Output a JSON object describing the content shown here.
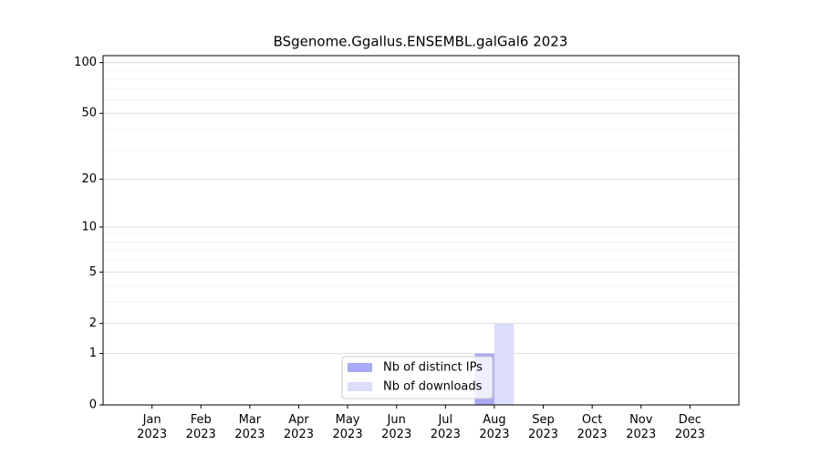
{
  "chart_data": {
    "type": "bar",
    "title": "BSgenome.Ggallus.ENSEMBL.galGal6 2023",
    "categories": [
      "Jan\n2023",
      "Feb\n2023",
      "Mar\n2023",
      "Apr\n2023",
      "May\n2023",
      "Jun\n2023",
      "Jul\n2023",
      "Aug\n2023",
      "Sep\n2023",
      "Oct\n2023",
      "Nov\n2023",
      "Dec\n2023"
    ],
    "series": [
      {
        "name": "Nb of distinct IPs",
        "color": "#a9a9f5",
        "values": [
          0,
          0,
          0,
          0,
          0,
          0,
          0,
          1,
          0,
          0,
          0,
          0
        ]
      },
      {
        "name": "Nb of downloads",
        "color": "#dcdcfb",
        "values": [
          0,
          0,
          0,
          0,
          0,
          0,
          0,
          2,
          0,
          0,
          0,
          0
        ]
      }
    ],
    "yscale": "symlog",
    "ylim": [
      0,
      110
    ],
    "yticks": [
      0,
      1,
      2,
      5,
      10,
      20,
      50,
      100
    ],
    "yminorticks": [
      3,
      4,
      6,
      7,
      8,
      9,
      30,
      40,
      60,
      70,
      80,
      90
    ],
    "grid": true,
    "legend": "lower center"
  }
}
